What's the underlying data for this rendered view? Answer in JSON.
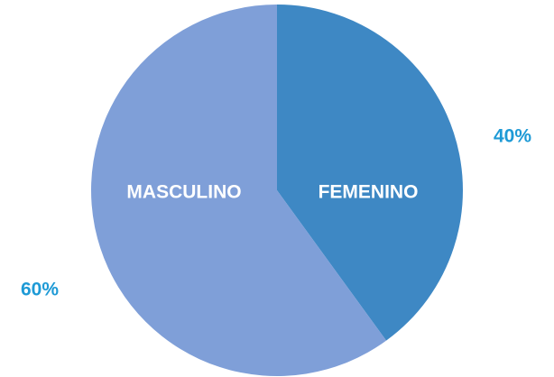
{
  "chart_data": {
    "type": "pie",
    "categories": [
      "FEMENINO",
      "MASCULINO"
    ],
    "values": [
      40,
      60
    ],
    "value_labels": [
      "40%",
      "60%"
    ],
    "colors": [
      "#3e88c4",
      "#7f9fd8"
    ]
  }
}
